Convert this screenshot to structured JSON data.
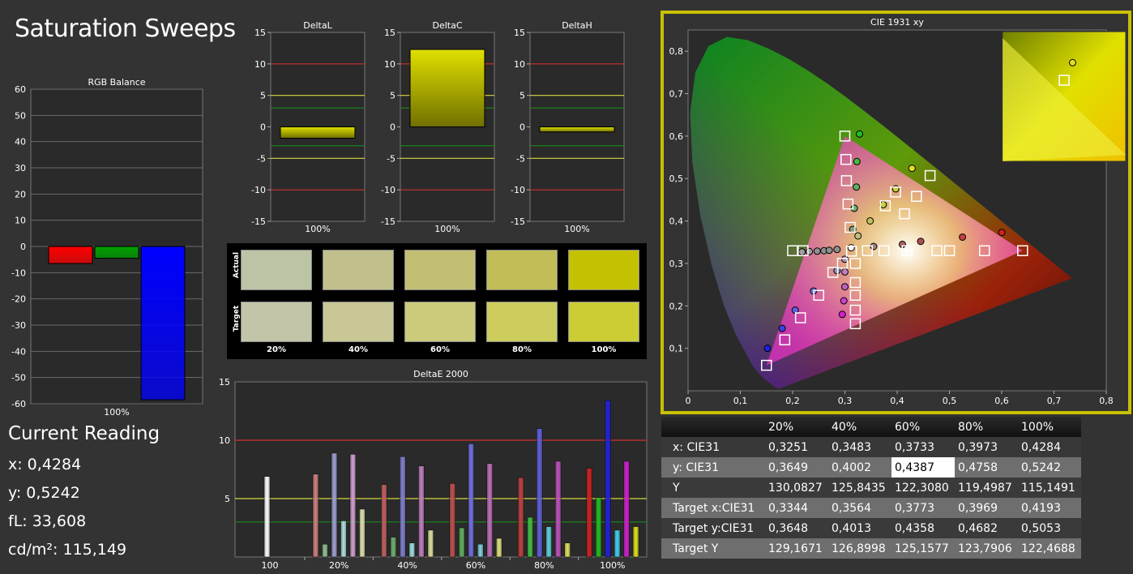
{
  "page_title": "Saturation Sweeps",
  "current_reading": {
    "heading": "Current Reading",
    "lines": [
      "x: 0,4284",
      "y: 0,5242",
      "fL: 33,608",
      "cd/m²: 115,149"
    ]
  },
  "colors": {
    "background": "#333333",
    "plot_bg": "#2a2a2a",
    "accent": "#c8c000",
    "red_line": "#d03030",
    "yellow_line": "#d8d840",
    "green_line": "#1a8a1a"
  },
  "swatches": {
    "row_labels": [
      "Actual",
      "Target"
    ],
    "columns": [
      "20%",
      "40%",
      "60%",
      "80%",
      "100%"
    ],
    "actual_colors": [
      "#bcc4a6",
      "#c1c08c",
      "#c2bf75",
      "#c2bd57",
      "#c4c200"
    ],
    "target_colors": [
      "#c3c5a8",
      "#c8c795",
      "#cccb7c",
      "#cccd5d",
      "#cccc34"
    ]
  },
  "table": {
    "columns": [
      "",
      "20%",
      "40%",
      "60%",
      "80%",
      "100%"
    ],
    "rows": [
      {
        "label": "x: CIE31",
        "values": [
          "0,3251",
          "0,3483",
          "0,3733",
          "0,3973",
          "0,4284"
        ]
      },
      {
        "label": "y: CIE31",
        "values": [
          "0,3649",
          "0,4002",
          "0,4387",
          "0,4758",
          "0,5242"
        ]
      },
      {
        "label": "Y",
        "values": [
          "130,0827",
          "125,8435",
          "122,3080",
          "119,4987",
          "115,1491"
        ]
      },
      {
        "label": "Target x:CIE31",
        "values": [
          "0,3344",
          "0,3564",
          "0,3773",
          "0,3969",
          "0,4193"
        ]
      },
      {
        "label": "Target y:CIE31",
        "values": [
          "0,3648",
          "0,4013",
          "0,4358",
          "0,4682",
          "0,5053"
        ]
      },
      {
        "label": "Target Y",
        "values": [
          "129,1671",
          "126,8998",
          "125,1577",
          "123,7906",
          "122,4688"
        ]
      }
    ]
  },
  "chart_data": [
    {
      "id": "rgb",
      "type": "bar",
      "title": "RGB Balance",
      "categories": [
        "100%"
      ],
      "series": [
        {
          "color": "#ff0000",
          "values": [
            -6.5
          ]
        },
        {
          "color": "#00a000",
          "values": [
            -4.5
          ]
        },
        {
          "color": "#0000ff",
          "values": [
            -58.5
          ]
        }
      ],
      "ylim": [
        -60,
        60
      ],
      "yticks": [
        60,
        50,
        40,
        30,
        20,
        10,
        0,
        -10,
        -20,
        -30,
        -40,
        -50,
        -60
      ],
      "ytick_labels": [
        "60",
        "50",
        "40",
        "30",
        "20",
        "10",
        "0",
        "-10",
        "-20",
        "-30",
        "-40",
        "-50",
        "-60"
      ],
      "grid": true
    },
    {
      "id": "deltal",
      "type": "bar",
      "title": "DeltaL",
      "categories": [
        "100%"
      ],
      "values": [
        -1.8
      ],
      "ylim": [
        -15,
        15
      ],
      "yticks": [
        15,
        10,
        5,
        0,
        -5,
        -10,
        -15
      ],
      "ytick_labels": [
        "15",
        "10",
        "5",
        "0",
        "-5",
        "-10",
        "-15"
      ],
      "ref_lines": [
        {
          "y": 10,
          "color": "#d03030"
        },
        {
          "y": 5,
          "color": "#d8d840"
        },
        {
          "y": 3,
          "color": "#1a8a1a"
        },
        {
          "y": -3,
          "color": "#1a8a1a"
        },
        {
          "y": -5,
          "color": "#d8d840"
        },
        {
          "y": -10,
          "color": "#d03030"
        }
      ]
    },
    {
      "id": "deltac",
      "type": "bar",
      "title": "DeltaC",
      "categories": [
        "100%"
      ],
      "values": [
        12.3
      ],
      "ylim": [
        -15,
        15
      ],
      "yticks": [
        15,
        10,
        5,
        0,
        -5,
        -10,
        -15
      ],
      "ytick_labels": [
        "15",
        "10",
        "5",
        "0",
        "-5",
        "-10",
        "-15"
      ],
      "ref_lines": [
        {
          "y": 10,
          "color": "#d03030"
        },
        {
          "y": 5,
          "color": "#d8d840"
        },
        {
          "y": 3,
          "color": "#1a8a1a"
        },
        {
          "y": -3,
          "color": "#1a8a1a"
        },
        {
          "y": -5,
          "color": "#d8d840"
        },
        {
          "y": -10,
          "color": "#d03030"
        }
      ]
    },
    {
      "id": "deltah",
      "type": "bar",
      "title": "DeltaH",
      "categories": [
        "100%"
      ],
      "values": [
        -0.8
      ],
      "ylim": [
        -15,
        15
      ],
      "yticks": [
        15,
        10,
        5,
        0,
        -5,
        -10,
        -15
      ],
      "ytick_labels": [
        "15",
        "10",
        "5",
        "0",
        "-5",
        "-10",
        "-15"
      ],
      "ref_lines": [
        {
          "y": 10,
          "color": "#d03030"
        },
        {
          "y": 5,
          "color": "#d8d840"
        },
        {
          "y": 3,
          "color": "#1a8a1a"
        },
        {
          "y": -3,
          "color": "#1a8a1a"
        },
        {
          "y": -5,
          "color": "#d8d840"
        },
        {
          "y": -10,
          "color": "#d03030"
        }
      ]
    },
    {
      "id": "deltae",
      "type": "bar",
      "title": "DeltaE 2000",
      "categories": [
        "100",
        "20%",
        "40%",
        "60%",
        "80%",
        "100%"
      ],
      "groups": [
        {
          "bars": [
            {
              "v": 6.9,
              "c": "#ffffff"
            }
          ]
        },
        {
          "bars": [
            {
              "v": 7.1,
              "c": "#d08080"
            },
            {
              "v": 1.1,
              "c": "#90c090"
            },
            {
              "v": 8.9,
              "c": "#a0a0d0"
            },
            {
              "v": 3.1,
              "c": "#b0e0e0"
            },
            {
              "v": 8.8,
              "c": "#d0a0d0"
            },
            {
              "v": 4.1,
              "c": "#e0e0b0"
            }
          ]
        },
        {
          "bars": [
            {
              "v": 6.2,
              "c": "#c06060"
            },
            {
              "v": 1.7,
              "c": "#70b070"
            },
            {
              "v": 8.6,
              "c": "#8080d0"
            },
            {
              "v": 1.2,
              "c": "#a0e0e0"
            },
            {
              "v": 7.8,
              "c": "#c080c0"
            },
            {
              "v": 2.3,
              "c": "#e0e0a0"
            }
          ]
        },
        {
          "bars": [
            {
              "v": 6.3,
              "c": "#c05050"
            },
            {
              "v": 2.5,
              "c": "#60b060"
            },
            {
              "v": 9.7,
              "c": "#7070e0"
            },
            {
              "v": 1.1,
              "c": "#80d0e0"
            },
            {
              "v": 8.0,
              "c": "#c070c0"
            },
            {
              "v": 1.6,
              "c": "#e0e080"
            }
          ]
        },
        {
          "bars": [
            {
              "v": 6.8,
              "c": "#c04040"
            },
            {
              "v": 3.4,
              "c": "#40c040"
            },
            {
              "v": 11.0,
              "c": "#6060e0"
            },
            {
              "v": 2.6,
              "c": "#60d0e0"
            },
            {
              "v": 8.2,
              "c": "#c050c0"
            },
            {
              "v": 1.2,
              "c": "#e0e060"
            }
          ]
        },
        {
          "bars": [
            {
              "v": 7.6,
              "c": "#d02020"
            },
            {
              "v": 5.1,
              "c": "#20c020"
            },
            {
              "v": 13.4,
              "c": "#2020e0"
            },
            {
              "v": 2.3,
              "c": "#40d0f0"
            },
            {
              "v": 8.2,
              "c": "#d020d0"
            },
            {
              "v": 2.6,
              "c": "#e0e020"
            }
          ]
        }
      ],
      "ylim": [
        0,
        15
      ],
      "yticks": [
        15,
        10,
        5
      ],
      "ytick_labels": [
        "15",
        "10",
        "5"
      ],
      "ref_lines": [
        {
          "y": 10,
          "color": "#d03030"
        },
        {
          "y": 5,
          "color": "#d8d840"
        },
        {
          "y": 3,
          "color": "#1a8a1a"
        }
      ]
    },
    {
      "id": "cie",
      "type": "scatter",
      "title": "CIE 1931 xy",
      "xlim": [
        0,
        0.8
      ],
      "ylim": [
        0,
        0.85
      ],
      "xticks": [
        0,
        0.1,
        0.2,
        0.3,
        0.4,
        0.5,
        0.6,
        0.7,
        0.8
      ],
      "xtick_labels": [
        "0",
        "0,1",
        "0,2",
        "0,3",
        "0,4",
        "0,5",
        "0,6",
        "0,7",
        "0,8"
      ],
      "yticks": [
        0.1,
        0.2,
        0.3,
        0.4,
        0.5,
        0.6,
        0.7,
        0.8
      ],
      "ytick_labels": [
        "0,1",
        "0,2",
        "0,3",
        "0,4",
        "0,5",
        "0,6",
        "0,7",
        "0,8"
      ],
      "gamut": [
        [
          0.64,
          0.33
        ],
        [
          0.3,
          0.6
        ],
        [
          0.15,
          0.06
        ]
      ],
      "targets": [
        [
          0.3127,
          0.329
        ],
        [
          0.22,
          0.33
        ],
        [
          0.2,
          0.33
        ],
        [
          0.3127,
          0.329
        ],
        [
          0.343,
          0.33
        ],
        [
          0.375,
          0.33
        ],
        [
          0.419,
          0.33
        ],
        [
          0.476,
          0.33
        ],
        [
          0.5,
          0.33
        ],
        [
          0.567,
          0.33
        ],
        [
          0.64,
          0.33
        ],
        [
          0.3127,
          0.329
        ],
        [
          0.3,
          0.6
        ],
        [
          0.302,
          0.545
        ],
        [
          0.303,
          0.495
        ],
        [
          0.306,
          0.44
        ],
        [
          0.31,
          0.385
        ],
        [
          0.3127,
          0.329
        ],
        [
          0.463,
          0.507
        ],
        [
          0.437,
          0.458
        ],
        [
          0.414,
          0.417
        ],
        [
          0.3969,
          0.4682
        ],
        [
          0.3773,
          0.4358
        ],
        [
          0.2953,
          0.3005
        ],
        [
          0.277,
          0.279
        ],
        [
          0.25,
          0.225
        ],
        [
          0.215,
          0.172
        ],
        [
          0.185,
          0.12
        ],
        [
          0.15,
          0.06
        ],
        [
          0.32,
          0.3
        ],
        [
          0.32,
          0.255
        ],
        [
          0.32,
          0.225
        ],
        [
          0.32,
          0.19
        ],
        [
          0.32,
          0.158
        ]
      ],
      "measured": [
        {
          "x": 0.218,
          "y": 0.327,
          "c": "#a0a0a0"
        },
        {
          "x": 0.232,
          "y": 0.328,
          "c": "#a0a0a0"
        },
        {
          "x": 0.247,
          "y": 0.329,
          "c": "#909090"
        },
        {
          "x": 0.26,
          "y": 0.33,
          "c": "#909090"
        },
        {
          "x": 0.27,
          "y": 0.331,
          "c": "#909090"
        },
        {
          "x": 0.285,
          "y": 0.333,
          "c": "#909090"
        },
        {
          "x": 0.312,
          "y": 0.337,
          "c": "#ffffff"
        },
        {
          "x": 0.355,
          "y": 0.34,
          "c": "#a08080"
        },
        {
          "x": 0.41,
          "y": 0.345,
          "c": "#b06060"
        },
        {
          "x": 0.445,
          "y": 0.352,
          "c": "#b05050"
        },
        {
          "x": 0.525,
          "y": 0.362,
          "c": "#c04040"
        },
        {
          "x": 0.6,
          "y": 0.373,
          "c": "#d02020"
        },
        {
          "x": 0.315,
          "y": 0.38,
          "c": "#80a080"
        },
        {
          "x": 0.318,
          "y": 0.43,
          "c": "#70b070"
        },
        {
          "x": 0.322,
          "y": 0.48,
          "c": "#60b060"
        },
        {
          "x": 0.323,
          "y": 0.54,
          "c": "#40c040"
        },
        {
          "x": 0.328,
          "y": 0.605,
          "c": "#20c020"
        },
        {
          "x": 0.3251,
          "y": 0.3649,
          "c": "#c0c080"
        },
        {
          "x": 0.3483,
          "y": 0.4002,
          "c": "#c0c060"
        },
        {
          "x": 0.3733,
          "y": 0.4387,
          "c": "#d0d040"
        },
        {
          "x": 0.3973,
          "y": 0.4758,
          "c": "#d0d030"
        },
        {
          "x": 0.4284,
          "y": 0.5242,
          "c": "#e0e020"
        },
        {
          "x": 0.285,
          "y": 0.283,
          "c": "#9090c0"
        },
        {
          "x": 0.24,
          "y": 0.235,
          "c": "#7070d0"
        },
        {
          "x": 0.205,
          "y": 0.19,
          "c": "#6060e0"
        },
        {
          "x": 0.18,
          "y": 0.147,
          "c": "#4040e0"
        },
        {
          "x": 0.152,
          "y": 0.1,
          "c": "#2020e0"
        },
        {
          "x": 0.3,
          "y": 0.31,
          "c": "#b090b0"
        },
        {
          "x": 0.3,
          "y": 0.28,
          "c": "#c080c0"
        },
        {
          "x": 0.3,
          "y": 0.245,
          "c": "#c060c0"
        },
        {
          "x": 0.298,
          "y": 0.212,
          "c": "#d040d0"
        },
        {
          "x": 0.295,
          "y": 0.18,
          "c": "#d020d0"
        }
      ],
      "inset": {
        "target": [
          0.4193,
          0.5053
        ],
        "measured": [
          0.4284,
          0.5242
        ]
      }
    }
  ]
}
